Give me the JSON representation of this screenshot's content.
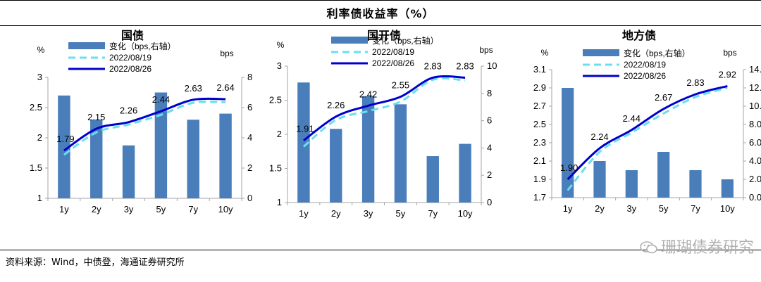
{
  "figure_title": "利率债收益率（%）",
  "source": "资料来源：Wind，中债登，海通证券研究所",
  "watermark": "珊瑚债券研究",
  "colors": {
    "bar": "#4a7ebb",
    "line_prev": "#66e0f0",
    "line_curr": "#0000cc",
    "axis": "#a6a6a6"
  },
  "chart_data": [
    {
      "type": "bar+line",
      "title": "国债",
      "left_unit": "%",
      "right_unit": "bps",
      "categories": [
        "1y",
        "2y",
        "3y",
        "5y",
        "7y",
        "10y"
      ],
      "ylim": [
        1,
        3
      ],
      "yticks": [
        "1",
        "1.5",
        "2",
        "2.5",
        "3"
      ],
      "y2lim": [
        0,
        8
      ],
      "y2ticks": [
        "0",
        "2",
        "4",
        "6",
        "8"
      ],
      "bars": {
        "name": "变化（bps,右轴）",
        "values": [
          6.8,
          5.2,
          3.5,
          7.0,
          5.2,
          5.6
        ]
      },
      "lines": [
        {
          "name": "2022/08/19",
          "values": [
            1.72,
            2.09,
            2.22,
            2.38,
            2.58,
            2.59
          ]
        },
        {
          "name": "2022/08/26",
          "values": [
            1.79,
            2.15,
            2.26,
            2.44,
            2.63,
            2.64
          ]
        }
      ],
      "labels": [
        "1.79",
        "2.15",
        "2.26",
        "2.44",
        "2.63",
        "2.64"
      ]
    },
    {
      "type": "bar+line",
      "title": "国开债",
      "left_unit": "%",
      "right_unit": "bps",
      "categories": [
        "1y",
        "2y",
        "3y",
        "5y",
        "7y",
        "10y"
      ],
      "ylim": [
        1,
        3
      ],
      "yticks": [
        "1",
        "1.5",
        "2",
        "2.5",
        "3"
      ],
      "y2lim": [
        0,
        10
      ],
      "y2ticks": [
        "0",
        "2",
        "4",
        "6",
        "8",
        "10"
      ],
      "bars": {
        "name": "变化（bps,右轴）",
        "values": [
          8.8,
          5.4,
          7.8,
          7.2,
          3.4,
          4.3
        ]
      },
      "lines": [
        {
          "name": "2022/08/19",
          "values": [
            1.82,
            2.21,
            2.34,
            2.48,
            2.8,
            2.79
          ]
        },
        {
          "name": "2022/08/26",
          "values": [
            1.91,
            2.26,
            2.42,
            2.55,
            2.83,
            2.83
          ]
        }
      ],
      "labels": [
        "1.91",
        "2.26",
        "2.42",
        "2.55",
        "2.83",
        "2.83"
      ]
    },
    {
      "type": "bar+line",
      "title": "地方债",
      "left_unit": "%",
      "right_unit": "bps",
      "categories": [
        "1y",
        "2y",
        "3y",
        "5y",
        "7y",
        "10y"
      ],
      "ylim": [
        1.7,
        3.1
      ],
      "yticks": [
        "1.7",
        "1.9",
        "2.1",
        "2.3",
        "2.5",
        "2.7",
        "2.9",
        "3.1"
      ],
      "y2lim": [
        0,
        14
      ],
      "y2ticks": [
        "0.0",
        "2.0",
        "4.0",
        "6.0",
        "8.0",
        "10.0",
        "12.0",
        "14.0"
      ],
      "bars": {
        "name": "变化（bps,右轴）",
        "values": [
          12.0,
          4.0,
          3.0,
          5.0,
          3.0,
          2.0
        ]
      },
      "lines": [
        {
          "name": "2022/08/19",
          "values": [
            1.78,
            2.2,
            2.41,
            2.62,
            2.8,
            2.9
          ]
        },
        {
          "name": "2022/08/26",
          "values": [
            1.9,
            2.24,
            2.44,
            2.67,
            2.83,
            2.92
          ]
        }
      ],
      "labels": [
        "1.90",
        "2.24",
        "2.44",
        "2.67",
        "2.83",
        "2.92"
      ]
    }
  ]
}
